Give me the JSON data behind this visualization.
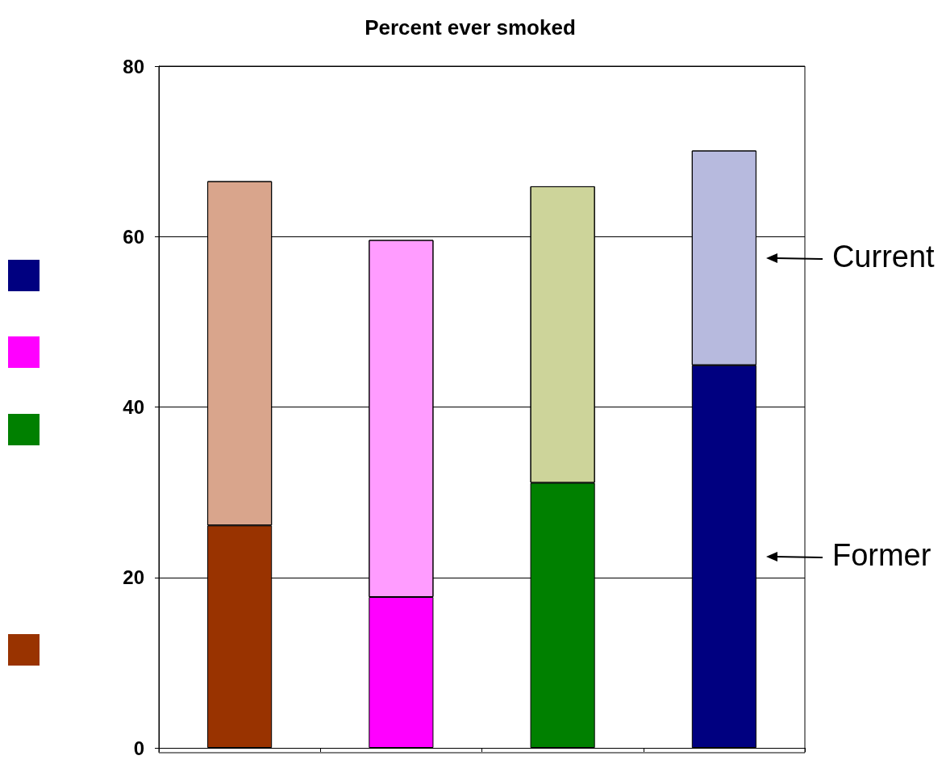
{
  "chart_data": {
    "type": "bar",
    "title": "Percent ever smoked",
    "categories": [
      null,
      null,
      null,
      null
    ],
    "stacked": true,
    "series": [
      {
        "name": "Former",
        "colors": [
          "#993300",
          "#ff00ff",
          "#008000",
          "#000080"
        ],
        "values": [
          26.1,
          17.7,
          31.1,
          44.9
        ]
      },
      {
        "name": "Current",
        "colors": [
          "#d9a58c",
          "#ff9cff",
          "#cdd49a",
          "#b7bade"
        ],
        "values": [
          40.4,
          41.9,
          34.8,
          25.2
        ]
      }
    ],
    "ylim": [
      0,
      80
    ],
    "yticks": [
      0,
      20,
      40,
      60,
      80
    ],
    "grid": "y",
    "legend": "right"
  }
}
